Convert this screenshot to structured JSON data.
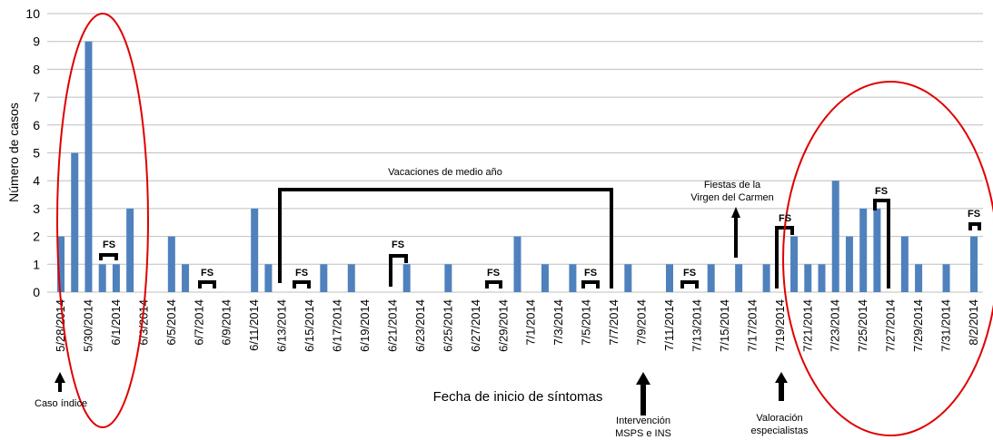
{
  "chart_data": {
    "type": "bar",
    "y_label": "Número de casos",
    "x_label": "Fecha de inicio de síntomas",
    "color": "#4f81bd",
    "grid": true,
    "ylim": [
      0,
      10
    ],
    "yticks": [
      0,
      1,
      2,
      3,
      4,
      5,
      6,
      7,
      8,
      9,
      10
    ],
    "categories": [
      "5/28/2014",
      null,
      "5/30/2014",
      null,
      "6/1/2014",
      null,
      "6/3/2014",
      null,
      "6/5/2014",
      null,
      "6/7/2014",
      null,
      "6/9/2014",
      null,
      "6/11/2014",
      null,
      "6/13/2014",
      null,
      "6/15/2014",
      null,
      "6/17/2014",
      null,
      "6/19/2014",
      null,
      "6/21/2014",
      null,
      "6/23/2014",
      null,
      "6/25/2014",
      null,
      "6/27/2014",
      null,
      "6/29/2014",
      null,
      "7/1/2014",
      null,
      "7/3/2014",
      null,
      "7/5/2014",
      null,
      "7/7/2014",
      null,
      "7/9/2014",
      null,
      "7/11/2014",
      null,
      "7/13/2014",
      null,
      "7/15/2014",
      null,
      "7/17/2014",
      null,
      "7/19/2014",
      null,
      "7/21/2014",
      null,
      "7/23/2014",
      null,
      "7/25/2014",
      null,
      "7/27/2014",
      null,
      "7/29/2014",
      null,
      "7/31/2014",
      null,
      "8/2/2014"
    ],
    "values": [
      2,
      5,
      9,
      1,
      1,
      3,
      0,
      0,
      2,
      1,
      0,
      0,
      0,
      0,
      3,
      1,
      0,
      0,
      0,
      1,
      0,
      1,
      0,
      0,
      0,
      1,
      0,
      0,
      1,
      0,
      0,
      0,
      0,
      2,
      0,
      1,
      0,
      1,
      0,
      0,
      0,
      1,
      0,
      0,
      1,
      0,
      0,
      1,
      0,
      1,
      0,
      1,
      0,
      2,
      1,
      1,
      4,
      2,
      3,
      3,
      0,
      2,
      1,
      0,
      1,
      0,
      2
    ],
    "annotations": [
      "Vacaciones de medio año",
      "Fiestas de la",
      "Virgen del Carmen",
      "Caso índice",
      "Intervención",
      "MSPS e INS",
      "Valoración",
      "especialistas",
      "FS",
      "FS",
      "FS",
      "FS",
      "FS",
      "FS",
      "FS",
      "FS",
      "FS",
      "FS"
    ]
  }
}
